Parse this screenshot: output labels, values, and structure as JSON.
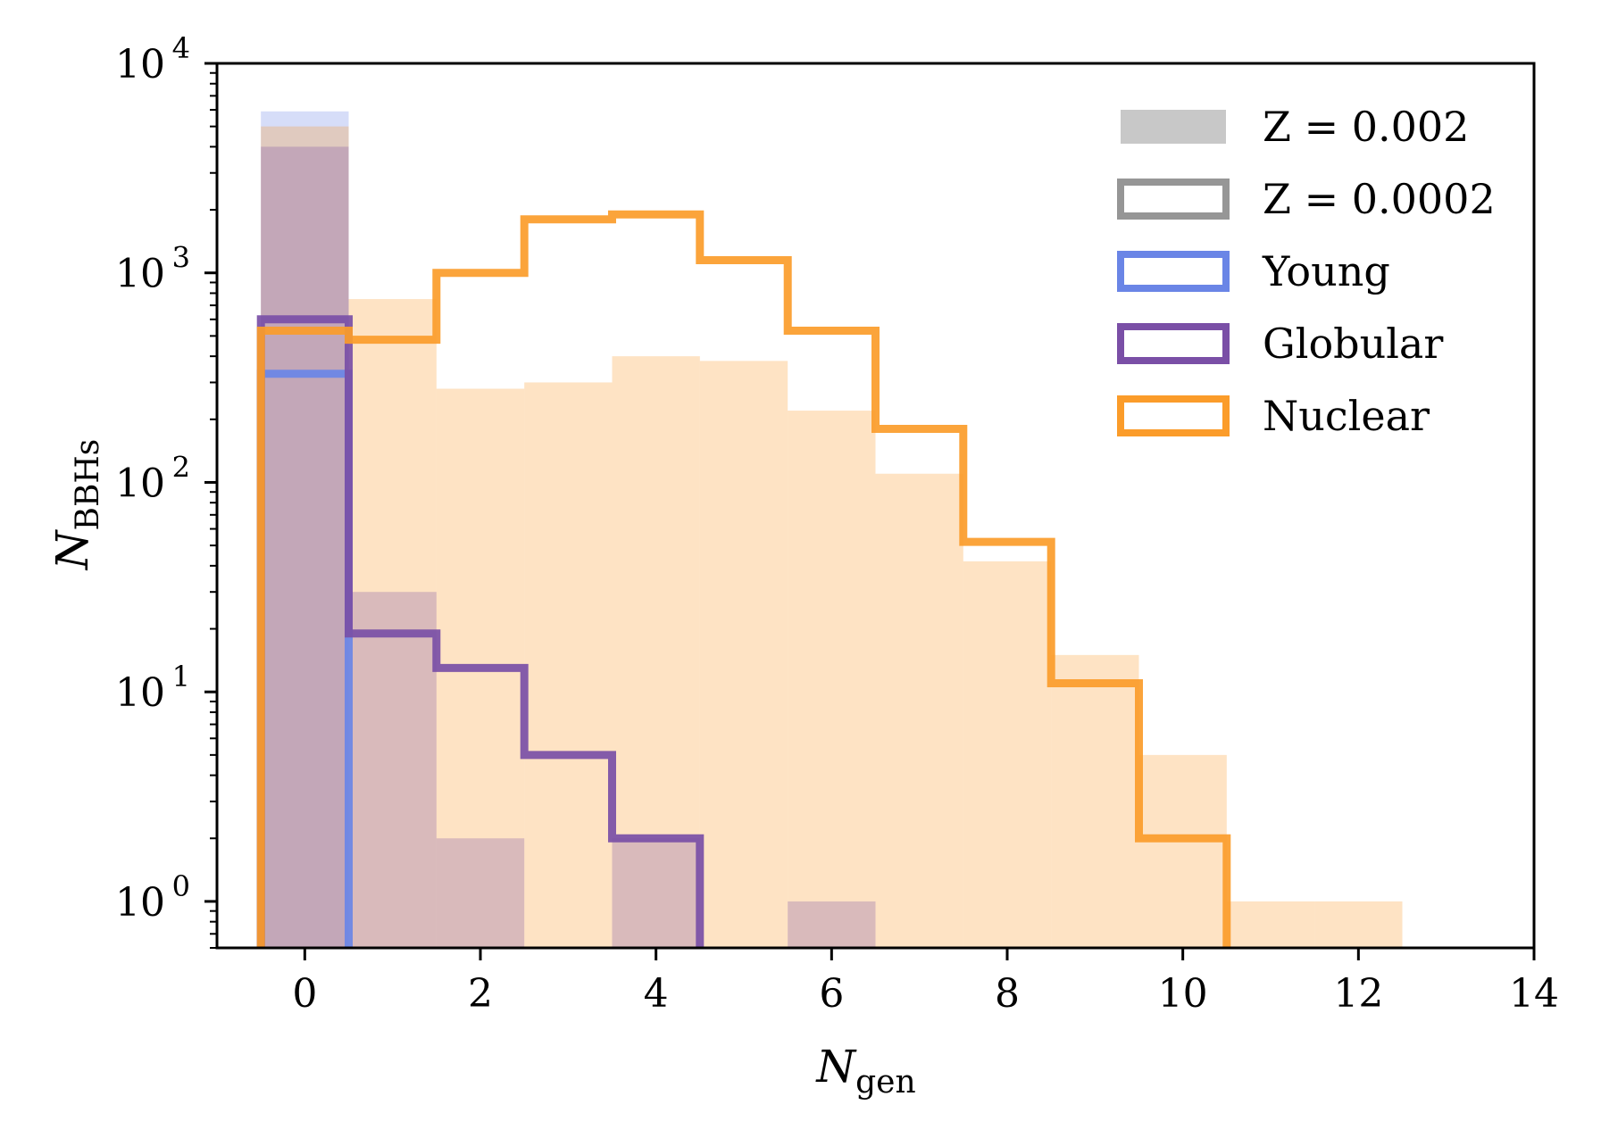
{
  "chart_data": {
    "type": "histogram",
    "xlabel": "N",
    "xlabel_sub": "gen",
    "ylabel": "N",
    "ylabel_sub": "BBHs",
    "yscale": "log",
    "xlim": [
      -1,
      14
    ],
    "ylim": [
      0.6,
      10000
    ],
    "xticks": [
      0,
      2,
      4,
      6,
      8,
      10,
      12,
      14
    ],
    "xtick_labels": [
      "0",
      "2",
      "4",
      "6",
      "8",
      "10",
      "12",
      "14"
    ],
    "yticks": [
      1,
      10,
      100,
      1000,
      10000
    ],
    "ytick_base": "10",
    "ytick_exps": [
      "0",
      "1",
      "2",
      "3",
      "4"
    ],
    "colors": {
      "Young": "#6a85e6",
      "Globular": "#7a4fa6",
      "Nuclear": "#fb9c2a"
    },
    "legend": [
      {
        "label": "Z = 0.002",
        "style": "filled",
        "color": "#c8c8c8"
      },
      {
        "label": "Z = 0.0002",
        "style": "outline",
        "color": "#969696"
      },
      {
        "label": "Young",
        "style": "outline",
        "color": "#6a85e6"
      },
      {
        "label": "Globular",
        "style": "outline",
        "color": "#7a4fa6"
      },
      {
        "label": "Nuclear",
        "style": "outline",
        "color": "#fb9c2a"
      }
    ],
    "series": [
      {
        "name": "Young",
        "metallicity": "Z = 0.002",
        "style": "filled",
        "bins": [
          [
            -0.5,
            0.5
          ]
        ],
        "values": [
          5900
        ]
      },
      {
        "name": "Nuclear",
        "metallicity": "Z = 0.002",
        "style": "filled",
        "bins": [
          [
            -0.5,
            0.5
          ],
          [
            0.5,
            1.5
          ],
          [
            1.5,
            2.5
          ],
          [
            2.5,
            3.5
          ],
          [
            3.5,
            4.5
          ],
          [
            4.5,
            5.5
          ],
          [
            5.5,
            6.5
          ],
          [
            6.5,
            7.5
          ],
          [
            7.5,
            8.5
          ],
          [
            8.5,
            9.5
          ],
          [
            9.5,
            10.5
          ],
          [
            10.5,
            11.5
          ],
          [
            11.5,
            12.5
          ]
        ],
        "values": [
          5000,
          750,
          280,
          300,
          400,
          380,
          220,
          110,
          42,
          15,
          5,
          1,
          1
        ]
      },
      {
        "name": "Globular",
        "metallicity": "Z = 0.002",
        "style": "filled",
        "bins": [
          [
            -0.5,
            0.5
          ],
          [
            0.5,
            1.5
          ],
          [
            1.5,
            2.5
          ],
          [
            2.5,
            3.5
          ],
          [
            3.5,
            4.5
          ],
          [
            4.5,
            5.5
          ],
          [
            5.5,
            6.5
          ]
        ],
        "values": [
          4000,
          30,
          2,
          0,
          2,
          0,
          1
        ]
      },
      {
        "name": "Young",
        "metallicity": "Z = 0.0002",
        "style": "step",
        "bins": [
          [
            -0.5,
            0.5
          ]
        ],
        "values": [
          330
        ]
      },
      {
        "name": "Globular",
        "metallicity": "Z = 0.0002",
        "style": "step",
        "bins": [
          [
            -0.5,
            0.5
          ],
          [
            0.5,
            1.5
          ],
          [
            1.5,
            2.5
          ],
          [
            2.5,
            3.5
          ],
          [
            3.5,
            4.5
          ]
        ],
        "values": [
          600,
          19,
          13,
          5,
          2
        ]
      },
      {
        "name": "Nuclear",
        "metallicity": "Z = 0.0002",
        "style": "step",
        "bins": [
          [
            -0.5,
            0.5
          ],
          [
            0.5,
            1.5
          ],
          [
            1.5,
            2.5
          ],
          [
            2.5,
            3.5
          ],
          [
            3.5,
            4.5
          ],
          [
            4.5,
            5.5
          ],
          [
            5.5,
            6.5
          ],
          [
            6.5,
            7.5
          ],
          [
            7.5,
            8.5
          ],
          [
            8.5,
            9.5
          ],
          [
            9.5,
            10.5
          ]
        ],
        "values": [
          530,
          480,
          1000,
          1800,
          1900,
          1150,
          530,
          180,
          52,
          11,
          2
        ]
      }
    ]
  }
}
